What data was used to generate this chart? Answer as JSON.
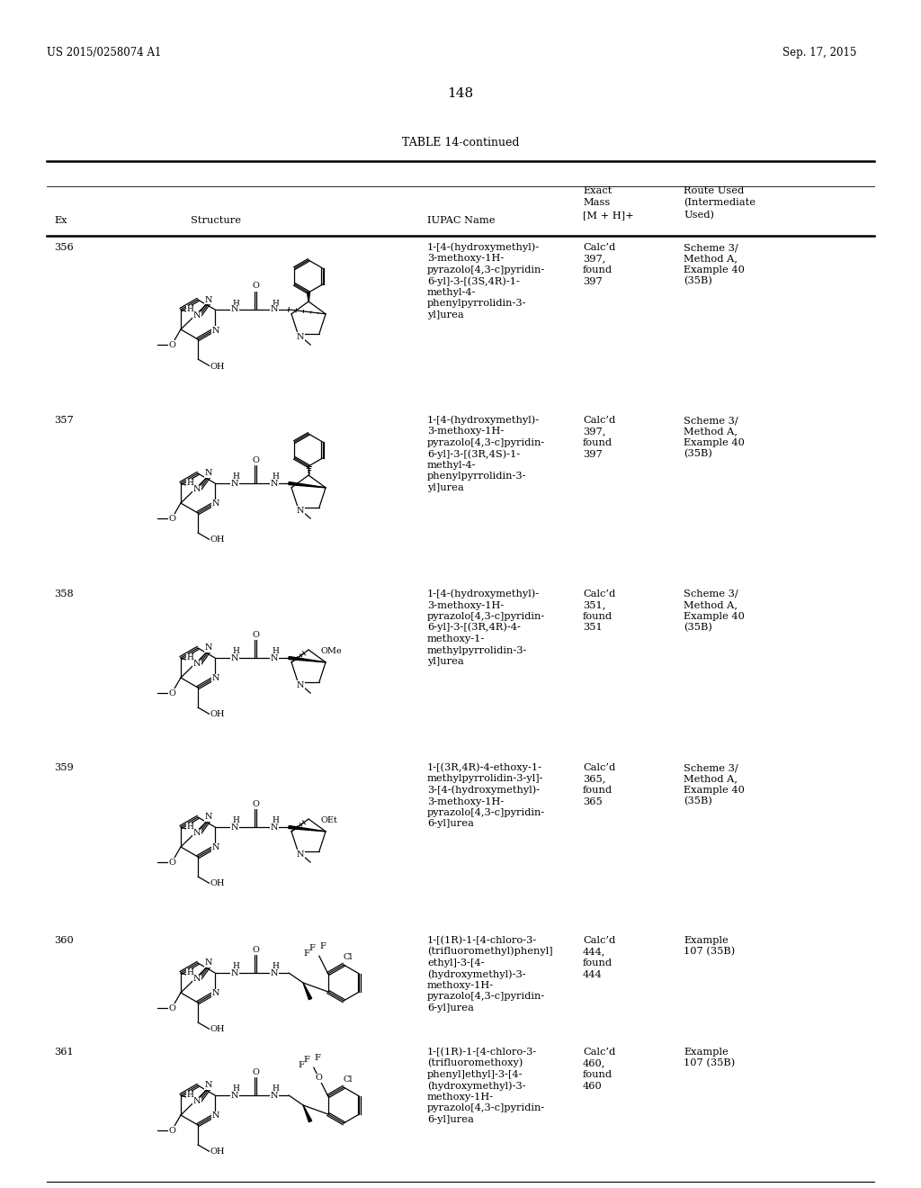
{
  "page_number": "148",
  "patent_left": "US 2015/0258074 A1",
  "patent_right": "Sep. 17, 2015",
  "table_title": "TABLE 14-continued",
  "bg_color": "#ffffff",
  "rows": [
    {
      "ex": "356",
      "iupac": "1-[4-(hydroxymethyl)-\n3-methoxy-1H-\npyrazolo[4,3-c]pyridin-\n6-yl]-3-[(3S,4R)-1-\nmethyl-4-\nphenylpyrrolidin-3-\nyl]urea",
      "mass": "Calc’d\n397,\nfound\n397",
      "route": "Scheme 3/\nMethod A,\nExample 40\n(35B)"
    },
    {
      "ex": "357",
      "iupac": "1-[4-(hydroxymethyl)-\n3-methoxy-1H-\npyrazolo[4,3-c]pyridin-\n6-yl]-3-[(3R,4S)-1-\nmethyl-4-\nphenylpyrrolidin-3-\nyl]urea",
      "mass": "Calc’d\n397,\nfound\n397",
      "route": "Scheme 3/\nMethod A,\nExample 40\n(35B)"
    },
    {
      "ex": "358",
      "iupac": "1-[4-(hydroxymethyl)-\n3-methoxy-1H-\npyrazolo[4,3-c]pyridin-\n6-yl]-3-[(3R,4R)-4-\nmethoxy-1-\nmethylpyrrolidin-3-\nyl]urea",
      "mass": "Calc’d\n351,\nfound\n351",
      "route": "Scheme 3/\nMethod A,\nExample 40\n(35B)"
    },
    {
      "ex": "359",
      "iupac": "1-[(3R,4R)-4-ethoxy-1-\nmethylpyrrolidin-3-yl]-\n3-[4-(hydroxymethyl)-\n3-methoxy-1H-\npyrazolo[4,3-c]pyridin-\n6-yl]urea",
      "mass": "Calc’d\n365,\nfound\n365",
      "route": "Scheme 3/\nMethod A,\nExample 40\n(35B)"
    },
    {
      "ex": "360",
      "iupac": "1-[(1R)-1-[4-chloro-3-\n(trifluoromethyl)phenyl]\nethyl]-3-[4-\n(hydroxymethyl)-3-\nmethoxy-1H-\npyrazolo[4,3-c]pyridin-\n6-yl]urea",
      "mass": "Calc’d\n444,\nfound\n444",
      "route": "Example\n107 (35B)"
    },
    {
      "ex": "361",
      "iupac": "1-[(1R)-1-[4-chloro-3-\n(trifluoromethoxy)\nphenyl]ethyl]-3-[4-\n(hydroxymethyl)-3-\nmethoxy-1H-\npyrazolo[4,3-c]pyridin-\n6-yl]urea",
      "mass": "Calc’d\n460,\nfound\n460",
      "route": "Example\n107 (35B)"
    }
  ]
}
